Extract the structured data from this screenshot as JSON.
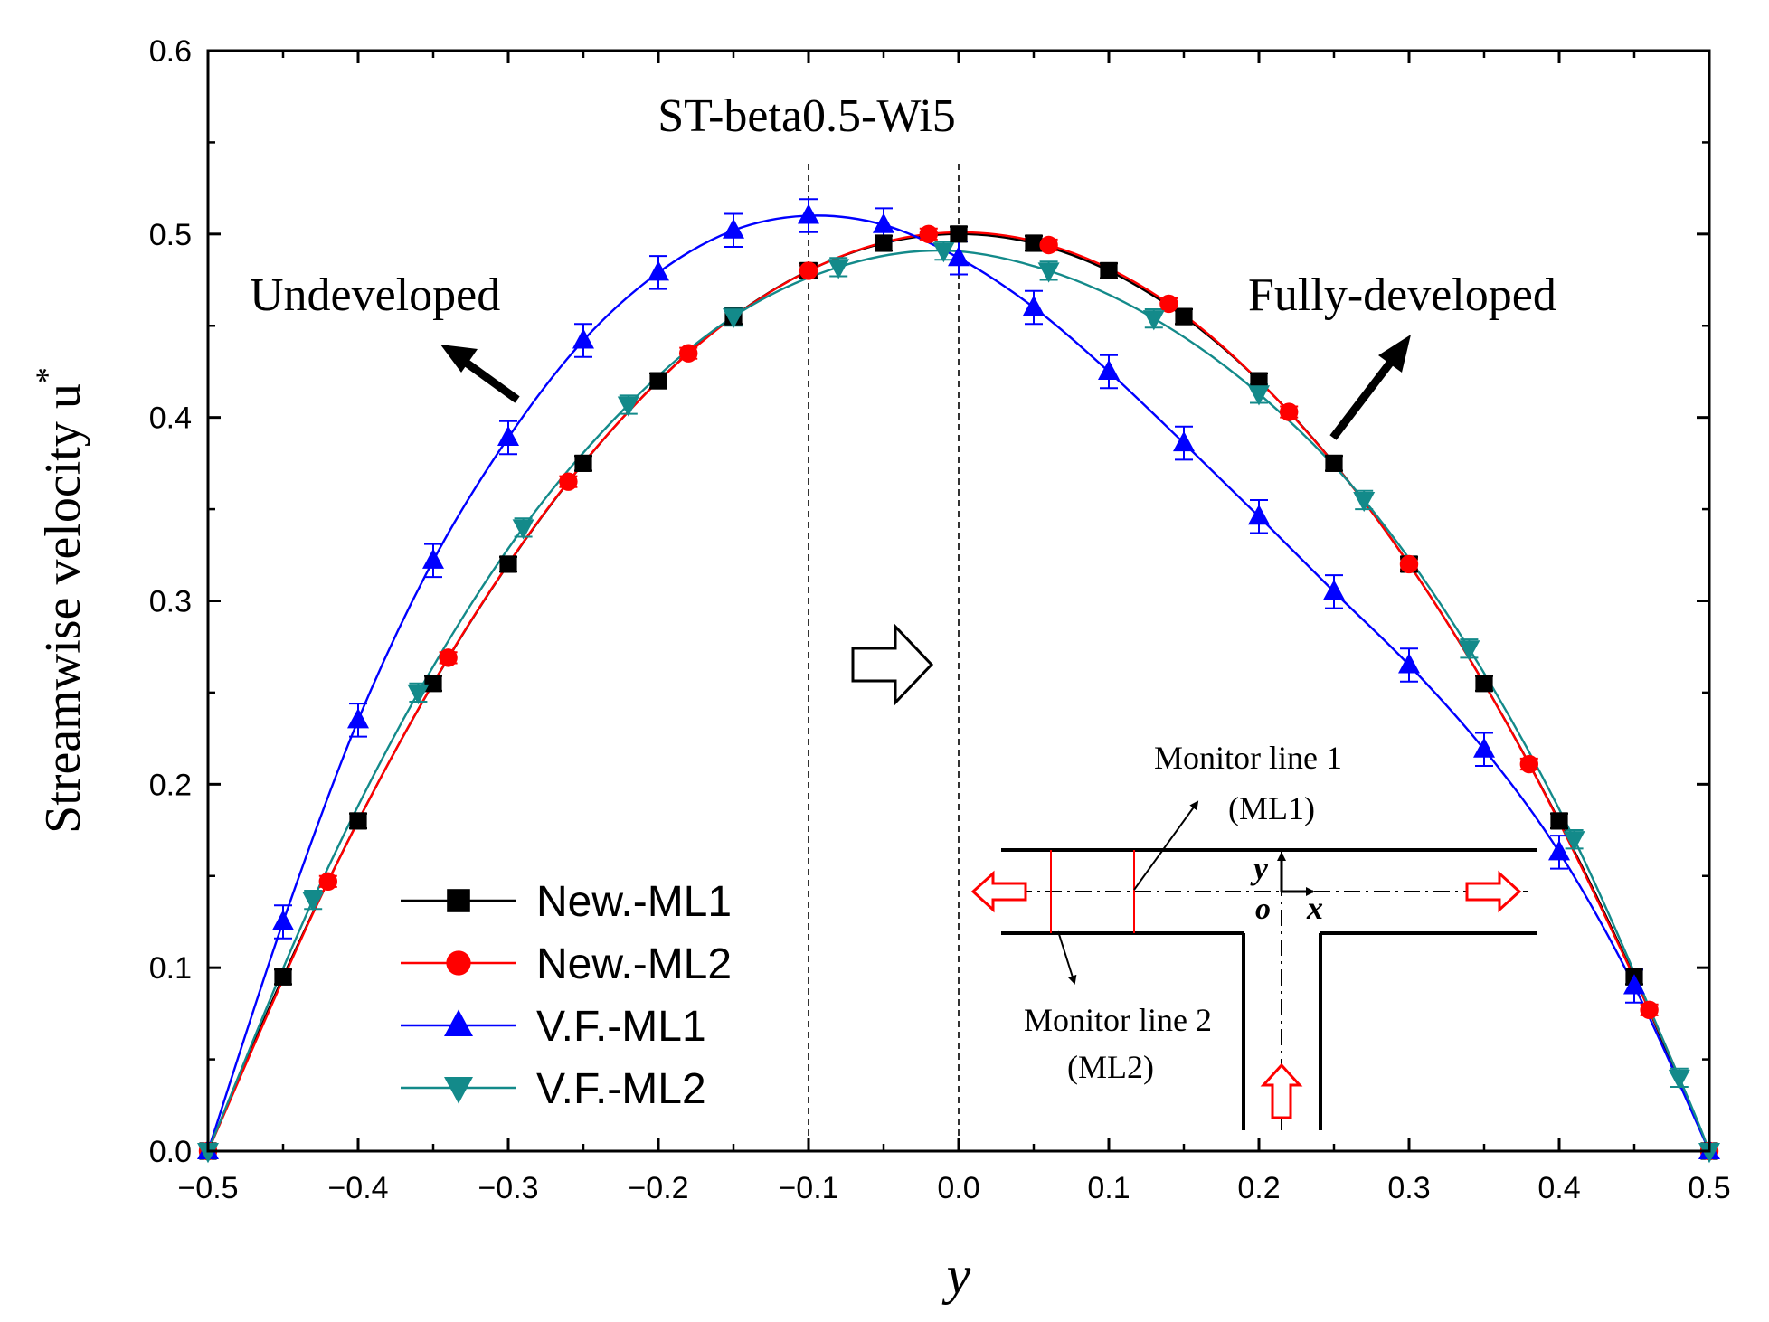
{
  "chart_data": {
    "type": "line",
    "title": "ST-beta0.5-Wi5",
    "xlabel": "y",
    "ylabel": "Streamwise velocity u",
    "ylabel_superscript": "*",
    "xlim": [
      -0.5,
      0.5
    ],
    "ylim": [
      0.0,
      0.6
    ],
    "x_ticks": [
      -0.5,
      -0.4,
      -0.3,
      -0.2,
      -0.1,
      0.0,
      0.1,
      0.2,
      0.3,
      0.4,
      0.5
    ],
    "x_tick_labels": [
      "−0.5",
      "−0.4",
      "−0.3",
      "−0.2",
      "−0.1",
      "0.0",
      "0.1",
      "0.2",
      "0.3",
      "0.4",
      "0.5"
    ],
    "y_ticks": [
      0.0,
      0.1,
      0.2,
      0.3,
      0.4,
      0.5,
      0.6
    ],
    "y_tick_labels": [
      "0.0",
      "0.1",
      "0.2",
      "0.3",
      "0.4",
      "0.5",
      "0.6"
    ],
    "grid": false,
    "legend_position": "bottom-left",
    "reference_lines_x": [
      -0.1,
      0.0
    ],
    "series": [
      {
        "name": "New.-ML1",
        "color": "#000000",
        "marker": "square",
        "x": [
          -0.5,
          -0.45,
          -0.4,
          -0.35,
          -0.3,
          -0.25,
          -0.2,
          -0.15,
          -0.1,
          -0.05,
          0.0,
          0.05,
          0.1,
          0.15,
          0.2,
          0.25,
          0.3,
          0.35,
          0.4,
          0.45,
          0.5
        ],
        "y": [
          0.0,
          0.095,
          0.18,
          0.255,
          0.32,
          0.375,
          0.42,
          0.455,
          0.48,
          0.495,
          0.5,
          0.495,
          0.48,
          0.455,
          0.42,
          0.375,
          0.32,
          0.255,
          0.18,
          0.095,
          0.0
        ],
        "err": 0.004
      },
      {
        "name": "New.-ML2",
        "color": "#ff0000",
        "marker": "circle",
        "x": [
          -0.5,
          -0.42,
          -0.34,
          -0.26,
          -0.18,
          -0.1,
          -0.02,
          0.06,
          0.14,
          0.22,
          0.3,
          0.38,
          0.46,
          0.5
        ],
        "y": [
          0.0,
          0.147,
          0.269,
          0.365,
          0.435,
          0.48,
          0.5,
          0.494,
          0.462,
          0.403,
          0.32,
          0.211,
          0.077,
          0.0
        ],
        "err": 0.003
      },
      {
        "name": "V.F.-ML1",
        "color": "#0000ff",
        "marker": "triangle-up",
        "x": [
          -0.5,
          -0.45,
          -0.4,
          -0.35,
          -0.3,
          -0.25,
          -0.2,
          -0.15,
          -0.1,
          -0.05,
          0.0,
          0.05,
          0.1,
          0.15,
          0.2,
          0.25,
          0.3,
          0.35,
          0.4,
          0.45,
          0.5
        ],
        "y": [
          0.0,
          0.125,
          0.235,
          0.322,
          0.389,
          0.442,
          0.479,
          0.502,
          0.51,
          0.505,
          0.487,
          0.46,
          0.425,
          0.386,
          0.346,
          0.305,
          0.265,
          0.219,
          0.163,
          0.09,
          0.0
        ],
        "err": 0.009
      },
      {
        "name": "V.F.-ML2",
        "color": "#138a8a",
        "marker": "triangle-down",
        "x": [
          -0.5,
          -0.43,
          -0.36,
          -0.29,
          -0.22,
          -0.15,
          -0.08,
          -0.01,
          0.06,
          0.13,
          0.2,
          0.27,
          0.34,
          0.41,
          0.48,
          0.5
        ],
        "y": [
          0.0,
          0.137,
          0.25,
          0.34,
          0.407,
          0.455,
          0.482,
          0.491,
          0.48,
          0.454,
          0.413,
          0.355,
          0.274,
          0.17,
          0.04,
          0.0
        ],
        "err": 0.005
      }
    ],
    "annotations": {
      "left": "Undeveloped",
      "right": "Fully-developed"
    },
    "inset": {
      "label_ml1": "Monitor line 1",
      "label_ml1_abbr": "(ML1)",
      "label_ml2": "Monitor line 2",
      "label_ml2_abbr": "(ML2)",
      "axis_y": "y",
      "axis_x": "x",
      "origin": "o"
    }
  }
}
